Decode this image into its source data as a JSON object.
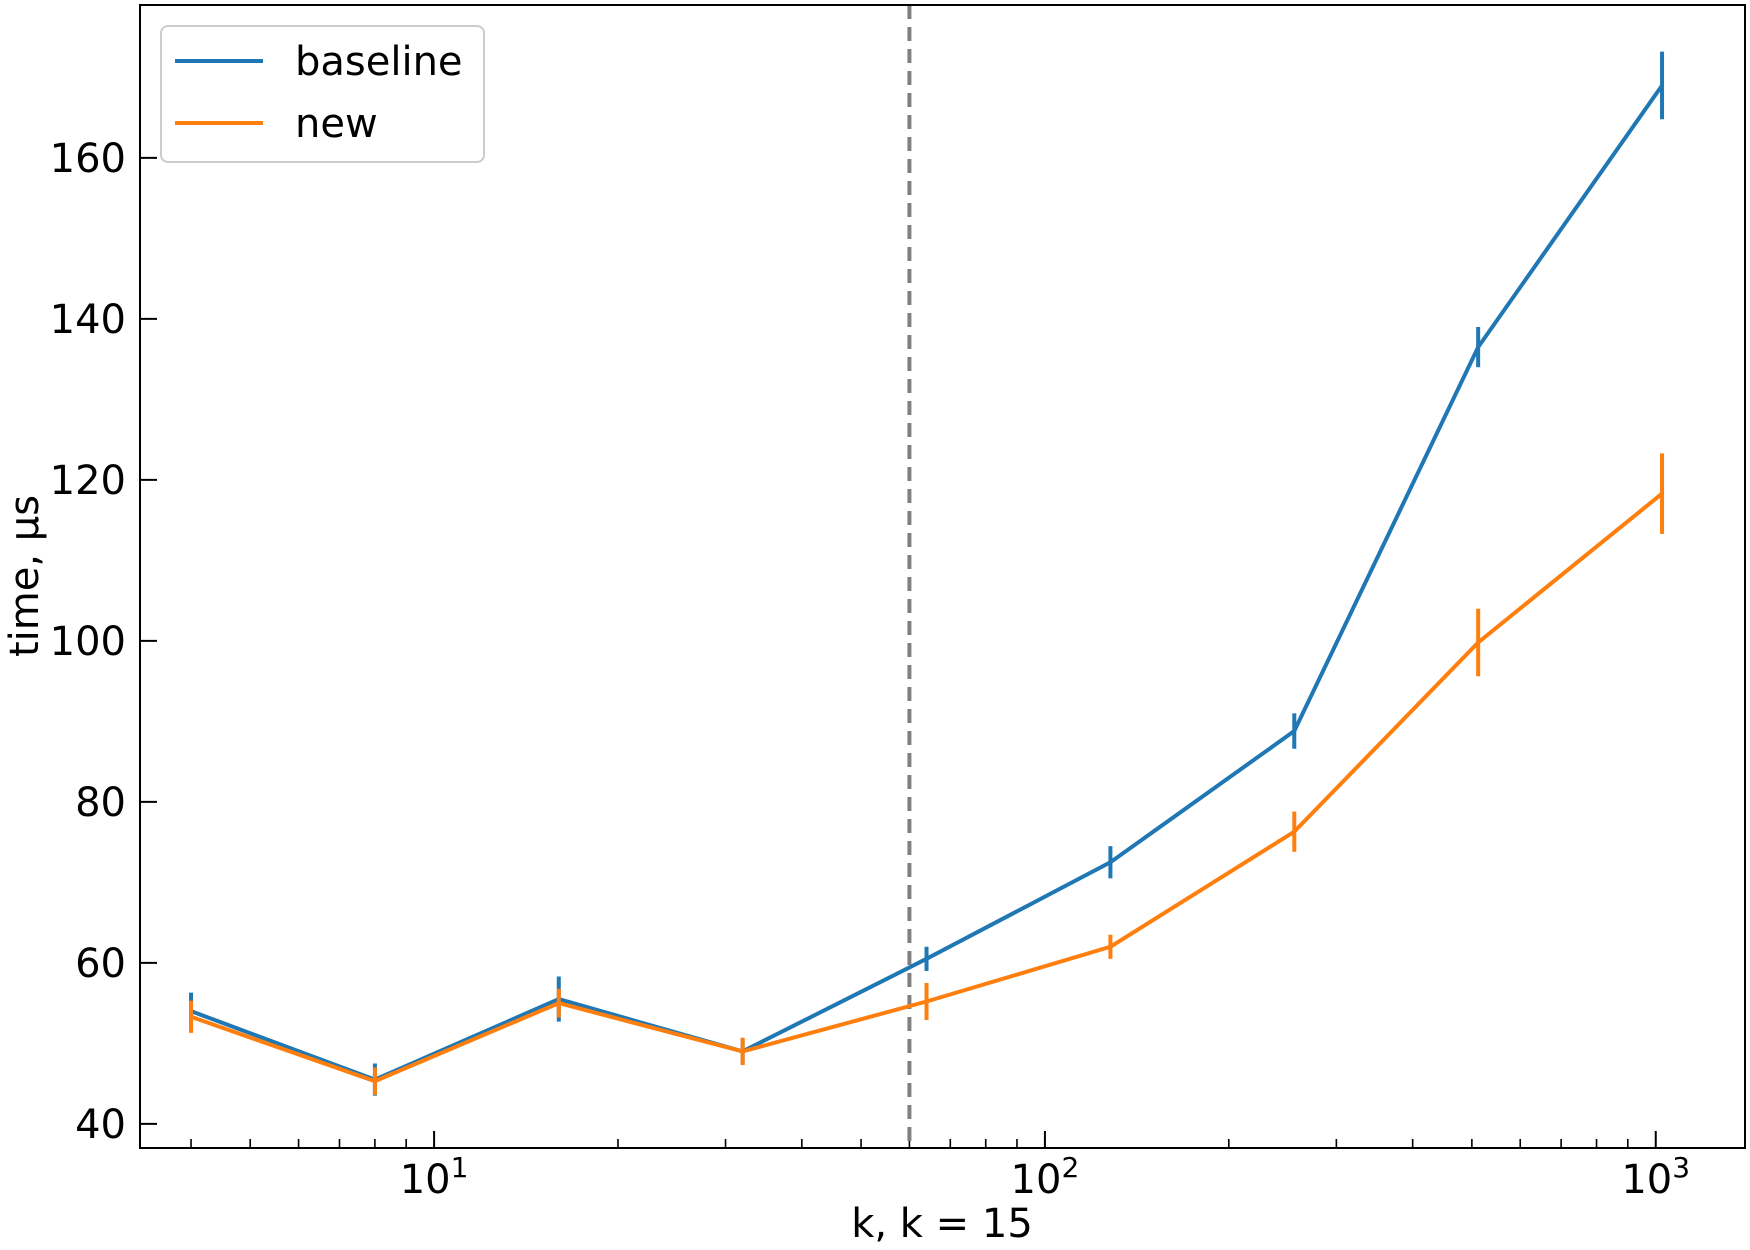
{
  "chart_data": {
    "type": "line",
    "xlabel": "k, k = 15",
    "ylabel": "time, µs",
    "xscale": "log",
    "xlim": [
      3.3,
      1400
    ],
    "ylim": [
      37,
      179
    ],
    "x": [
      4,
      8,
      16,
      32,
      64,
      128,
      256,
      512,
      1024
    ],
    "xticks": [
      {
        "value": 10,
        "base": "10",
        "exp": "1"
      },
      {
        "value": 100,
        "base": "10",
        "exp": "2"
      },
      {
        "value": 1000,
        "base": "10",
        "exp": "3"
      }
    ],
    "yticks": [
      40,
      60,
      80,
      100,
      120,
      140,
      160
    ],
    "grid": false,
    "legend_position": "top-left",
    "vline": {
      "x": 60,
      "style": "dashed",
      "color": "#808080"
    },
    "series": [
      {
        "name": "baseline",
        "color": "#1f77b4",
        "values": [
          54.0,
          45.5,
          55.5,
          49.0,
          60.5,
          72.5,
          88.8,
          136.5,
          169.0
        ],
        "err": [
          2.3,
          2.0,
          2.8,
          1.5,
          1.5,
          2.0,
          2.2,
          2.5,
          4.2
        ]
      },
      {
        "name": "new",
        "color": "#ff7f0e",
        "values": [
          53.3,
          45.3,
          55.0,
          49.0,
          55.2,
          62.0,
          76.3,
          99.8,
          118.3
        ],
        "err": [
          2.0,
          1.7,
          1.8,
          1.7,
          2.3,
          1.5,
          2.5,
          4.2,
          5.0
        ]
      }
    ]
  }
}
